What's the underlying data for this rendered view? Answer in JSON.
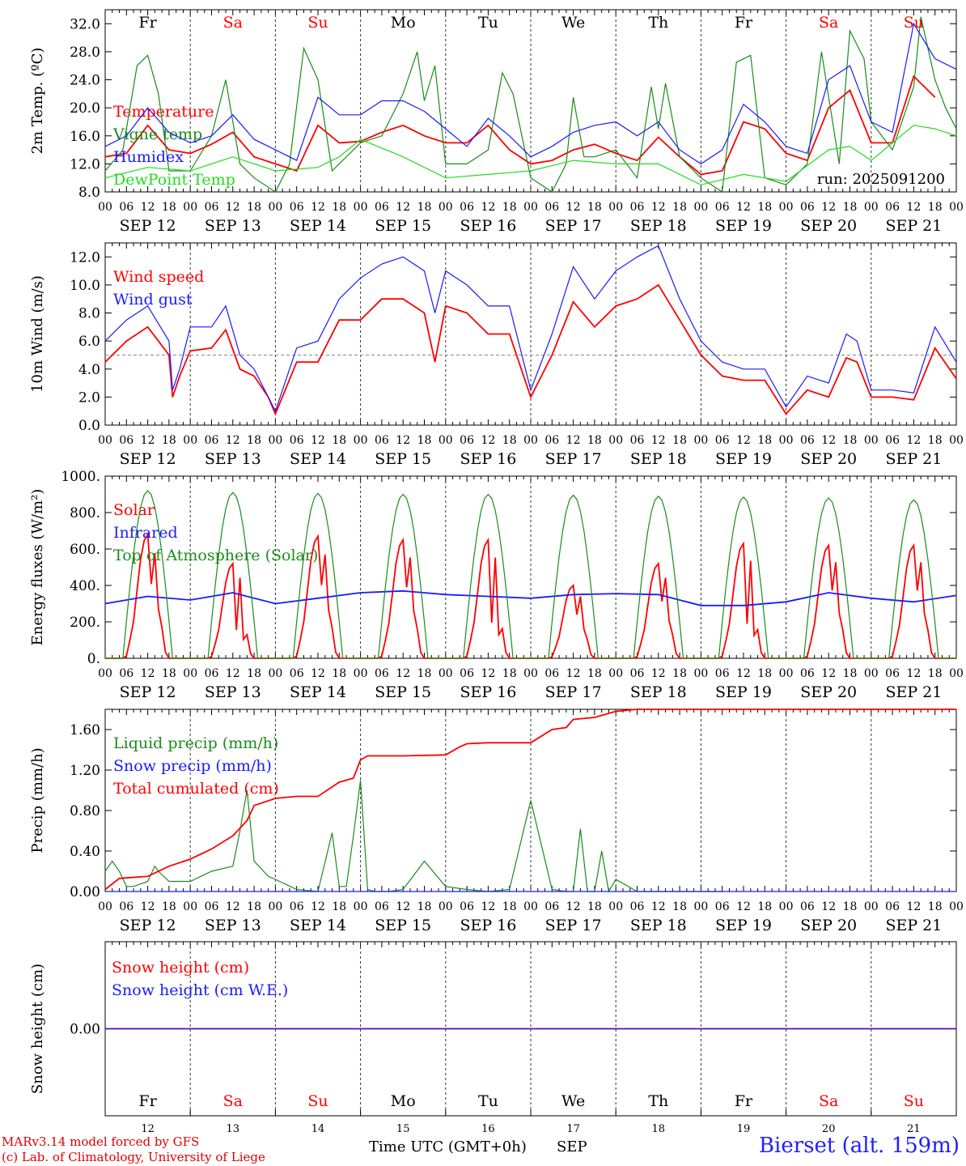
{
  "colors": {
    "red": "#ff0000",
    "blue": "#1a1aff",
    "darkgreen": "#1a8c1a",
    "lightgreen": "#22dd22",
    "weekend": "#ff0000",
    "weekday": "#000000"
  },
  "days": {
    "weekdays": [
      "Fr",
      "Sa",
      "Su",
      "Mo",
      "Tu",
      "We",
      "Th",
      "Fr",
      "Sa",
      "Su"
    ],
    "weekend_flags": [
      false,
      true,
      true,
      false,
      false,
      false,
      false,
      false,
      true,
      true
    ],
    "dates": [
      "SEP 12",
      "SEP 13",
      "SEP 14",
      "SEP 15",
      "SEP 16",
      "SEP 17",
      "SEP 18",
      "SEP 19",
      "SEP 20",
      "SEP 21"
    ],
    "day_numbers": [
      "12",
      "13",
      "14",
      "15",
      "16",
      "17",
      "18",
      "19",
      "20",
      "21"
    ],
    "hour_labels": [
      "00",
      "06",
      "12",
      "18"
    ]
  },
  "footer": {
    "credit_line1": "MARv3.14 model forced by GFS",
    "credit_line2": "(c) Lab. of Climatology, University of Liege",
    "xaxis_label": "Time UTC (GMT+0h)",
    "month_label": "SEP",
    "station": "Bierset (alt. 159m)"
  },
  "chart_data": [
    {
      "type": "line",
      "ylabel": "2m Temp. (ºC)",
      "ylim": [
        8,
        34
      ],
      "ticks": [
        8.0,
        12.0,
        16.0,
        20.0,
        24.0,
        28.0,
        32.0
      ],
      "tick_decimals": 1,
      "annotation": "run: 2025091200",
      "x_unit": "hours since SEP 12 00 UTC",
      "series": [
        {
          "name": "Temperature",
          "color": "red",
          "x": [
            0,
            6,
            12,
            18,
            24,
            30,
            36,
            42,
            48,
            54,
            60,
            66,
            72,
            78,
            84,
            90,
            96,
            102,
            108,
            114,
            120,
            126,
            132,
            138,
            144,
            150,
            156,
            162,
            168,
            174,
            180,
            186,
            192,
            198,
            204,
            210,
            216,
            222,
            228,
            234
          ],
          "y": [
            13,
            13.5,
            17.5,
            14,
            13.5,
            14.8,
            16.5,
            13,
            12,
            11,
            17.5,
            15,
            15.2,
            16.5,
            17.5,
            16,
            15,
            15,
            17.5,
            14,
            12,
            12.5,
            14,
            14.8,
            13.5,
            12.5,
            15.8,
            13,
            10.5,
            11,
            18,
            17,
            13.5,
            12.5,
            20,
            22.5,
            15,
            15,
            24.5,
            21.5
          ]
        },
        {
          "name": "Vigne temp",
          "color": "darkgreen",
          "x": [
            0,
            5,
            9,
            12,
            15,
            18,
            24,
            30,
            34,
            38,
            42,
            48,
            52,
            56,
            60,
            64,
            68,
            72,
            78,
            84,
            88,
            90,
            93,
            96,
            102,
            108,
            112,
            115,
            120,
            126,
            130,
            132,
            135,
            138,
            144,
            150,
            154,
            156,
            158,
            162,
            168,
            174,
            178,
            182,
            186,
            192,
            198,
            202,
            207,
            210,
            214,
            216,
            222,
            228,
            230,
            234,
            237,
            240
          ],
          "y": [
            11,
            14,
            26,
            27.5,
            22,
            11,
            11,
            16,
            24,
            12,
            10,
            8,
            12,
            28.5,
            24,
            11,
            13,
            15,
            16,
            22,
            28,
            21,
            26,
            12,
            12,
            14,
            25,
            22,
            10,
            8,
            12,
            21.5,
            13,
            13,
            14,
            10,
            23,
            17,
            23.5,
            13,
            10,
            8,
            26.5,
            27.5,
            10,
            9,
            12,
            28,
            12,
            31,
            27,
            18,
            14,
            23,
            33,
            24,
            20,
            17
          ]
        },
        {
          "name": "Humidex",
          "color": "blue",
          "x": [
            0,
            6,
            12,
            18,
            24,
            30,
            36,
            42,
            48,
            54,
            60,
            66,
            72,
            78,
            84,
            90,
            96,
            102,
            108,
            114,
            120,
            126,
            132,
            138,
            144,
            150,
            156,
            162,
            168,
            174,
            180,
            186,
            192,
            198,
            204,
            210,
            216,
            222,
            228,
            234,
            240
          ],
          "y": [
            14.5,
            16,
            20,
            16.5,
            15,
            16,
            19,
            15.5,
            14,
            12.5,
            21.5,
            19,
            19,
            21,
            21,
            19.5,
            17,
            14.5,
            18.5,
            16,
            13,
            14.5,
            16.5,
            17.5,
            18,
            16,
            18,
            14,
            12,
            14,
            20.5,
            18,
            14.5,
            13.5,
            24,
            26,
            18,
            16.5,
            32,
            27,
            25.5
          ]
        },
        {
          "name": "DewPoint Temp",
          "color": "lightgreen",
          "x": [
            0,
            12,
            24,
            36,
            48,
            60,
            66,
            72,
            84,
            96,
            108,
            120,
            132,
            144,
            156,
            168,
            180,
            192,
            204,
            210,
            216,
            228,
            234,
            240
          ],
          "y": [
            10,
            11.5,
            11,
            13,
            11,
            11.5,
            13,
            15.5,
            13,
            10,
            10.5,
            11,
            12.5,
            12,
            12,
            9,
            10.5,
            9.5,
            14,
            14.5,
            12.5,
            17.5,
            17,
            16
          ]
        }
      ]
    },
    {
      "type": "line",
      "ylabel": "10m Wind (m/s)",
      "ylim": [
        0,
        13
      ],
      "ticks": [
        0.0,
        2.0,
        4.0,
        6.0,
        8.0,
        10.0,
        12.0
      ],
      "tick_decimals": 1,
      "threshold": 5.0,
      "series": [
        {
          "name": "Wind speed",
          "color": "red",
          "x": [
            0,
            6,
            12,
            18,
            19,
            21,
            24,
            30,
            34,
            38,
            42,
            46,
            48,
            54,
            60,
            66,
            72,
            78,
            84,
            90,
            93,
            96,
            102,
            108,
            114,
            120,
            126,
            132,
            138,
            144,
            150,
            156,
            162,
            168,
            174,
            180,
            186,
            192,
            198,
            204,
            209,
            212,
            216,
            222,
            228,
            234,
            240
          ],
          "y": [
            4.5,
            6,
            7,
            5,
            2,
            3.5,
            5.3,
            5.5,
            6.8,
            4,
            3.5,
            2,
            0.8,
            4.5,
            4.5,
            7.5,
            7.5,
            9,
            9,
            8,
            4.5,
            8.5,
            8,
            6.5,
            6.5,
            2,
            5,
            8.8,
            7,
            8.5,
            9,
            10,
            7.5,
            5,
            3.5,
            3.2,
            3.2,
            0.8,
            2.5,
            2,
            4.8,
            4.5,
            2,
            2,
            1.8,
            5.5,
            3.3
          ]
        },
        {
          "name": "Wind gust",
          "color": "blue",
          "x": [
            0,
            6,
            12,
            18,
            19,
            21,
            24,
            30,
            34,
            38,
            42,
            46,
            48,
            54,
            60,
            66,
            72,
            78,
            84,
            90,
            93,
            96,
            102,
            108,
            114,
            120,
            126,
            132,
            138,
            144,
            150,
            156,
            162,
            168,
            174,
            180,
            186,
            192,
            198,
            204,
            209,
            212,
            216,
            222,
            228,
            234,
            240
          ],
          "y": [
            6,
            7.5,
            8.5,
            6,
            2.5,
            4,
            7,
            7,
            8.5,
            5,
            4,
            2,
            1,
            5.5,
            6,
            9,
            10.5,
            11.5,
            12,
            11,
            8,
            11,
            10,
            8.5,
            8.5,
            2.5,
            6.5,
            11.3,
            9,
            11,
            12,
            12.8,
            9,
            6,
            4.5,
            4,
            4,
            1.3,
            3.5,
            3,
            6.5,
            6,
            2.5,
            2.5,
            2.3,
            7,
            4.5
          ]
        }
      ]
    },
    {
      "type": "line",
      "ylabel": "Energy fluxes (W/m²)",
      "ylim": [
        0,
        1000
      ],
      "ticks": [
        0,
        200,
        400,
        600,
        800,
        1000
      ],
      "tick_decimals": 0,
      "series": [
        {
          "name": "Solar",
          "color": "red",
          "peaks": [
            680,
            520,
            670,
            650,
            650,
            400,
            520,
            630,
            620,
            620
          ]
        },
        {
          "name": "Infrared",
          "color": "blue",
          "x": [
            0,
            12,
            24,
            36,
            48,
            60,
            72,
            84,
            96,
            108,
            120,
            132,
            144,
            156,
            168,
            180,
            192,
            204,
            216,
            228,
            240
          ],
          "y": [
            300,
            340,
            320,
            360,
            300,
            330,
            360,
            370,
            350,
            340,
            330,
            350,
            355,
            350,
            290,
            290,
            310,
            360,
            330,
            310,
            345
          ]
        },
        {
          "name": "Top of Atmosphere (Solar)",
          "color": "darkgreen",
          "peaks": [
            920,
            910,
            905,
            900,
            900,
            895,
            890,
            885,
            880,
            870
          ]
        }
      ]
    },
    {
      "type": "line",
      "ylabel": "Precip (mm/h)",
      "ylim": [
        0,
        1.8
      ],
      "ticks": [
        0.0,
        0.4,
        0.8,
        1.2,
        1.6
      ],
      "tick_decimals": 2,
      "series": [
        {
          "name": "Liquid precip (mm/h)",
          "color": "darkgreen",
          "x": [
            0,
            2,
            4,
            6,
            8,
            12,
            14,
            15,
            18,
            24,
            30,
            36,
            38,
            40,
            42,
            46,
            48,
            54,
            60,
            64,
            66,
            68,
            70,
            72,
            74,
            76,
            80,
            84,
            90,
            96,
            102,
            108,
            114,
            120,
            126,
            130,
            132,
            134,
            136,
            138,
            140,
            142,
            144,
            150,
            156,
            162,
            168,
            174
          ],
          "y": [
            0.2,
            0.3,
            0.2,
            0.05,
            0.05,
            0.1,
            0.25,
            0.2,
            0.1,
            0.1,
            0.2,
            0.25,
            0.6,
            1.0,
            0.3,
            0.15,
            0.12,
            0.02,
            0,
            0.58,
            0.05,
            0.05,
            0.55,
            1.1,
            0.02,
            0,
            0,
            0.02,
            0.3,
            0.05,
            0.02,
            0,
            0.02,
            0.9,
            0.02,
            0,
            0,
            0.62,
            0,
            0,
            0.4,
            0,
            0.12,
            0,
            0,
            0,
            0,
            0
          ]
        },
        {
          "name": "Snow precip (mm/h)",
          "color": "blue",
          "x": [
            0,
            240
          ],
          "y": [
            0,
            0
          ]
        },
        {
          "name": "Total cumulated (cm)",
          "color": "red",
          "x": [
            0,
            4,
            12,
            18,
            24,
            30,
            36,
            40,
            42,
            48,
            54,
            60,
            66,
            70,
            72,
            74,
            84,
            96,
            100,
            102,
            108,
            114,
            120,
            126,
            130,
            132,
            138,
            144,
            150,
            156,
            240
          ],
          "y": [
            0.02,
            0.13,
            0.15,
            0.25,
            0.32,
            0.42,
            0.55,
            0.7,
            0.85,
            0.92,
            0.94,
            0.94,
            1.08,
            1.12,
            1.3,
            1.34,
            1.34,
            1.35,
            1.43,
            1.46,
            1.47,
            1.47,
            1.47,
            1.6,
            1.62,
            1.7,
            1.72,
            1.78,
            1.8,
            1.8,
            1.8
          ]
        }
      ]
    },
    {
      "type": "line",
      "ylabel": "Snow height (cm)",
      "ylim": [
        -1,
        1
      ],
      "ticks": [
        0.0
      ],
      "tick_decimals": 2,
      "series": [
        {
          "name": "Snow height (cm)",
          "color": "red",
          "x": [
            0,
            240
          ],
          "y": [
            0,
            0
          ]
        },
        {
          "name": "Snow height (cm W.E.)",
          "color": "blue",
          "x": [
            0,
            240
          ],
          "y": [
            0,
            0
          ]
        }
      ]
    }
  ]
}
